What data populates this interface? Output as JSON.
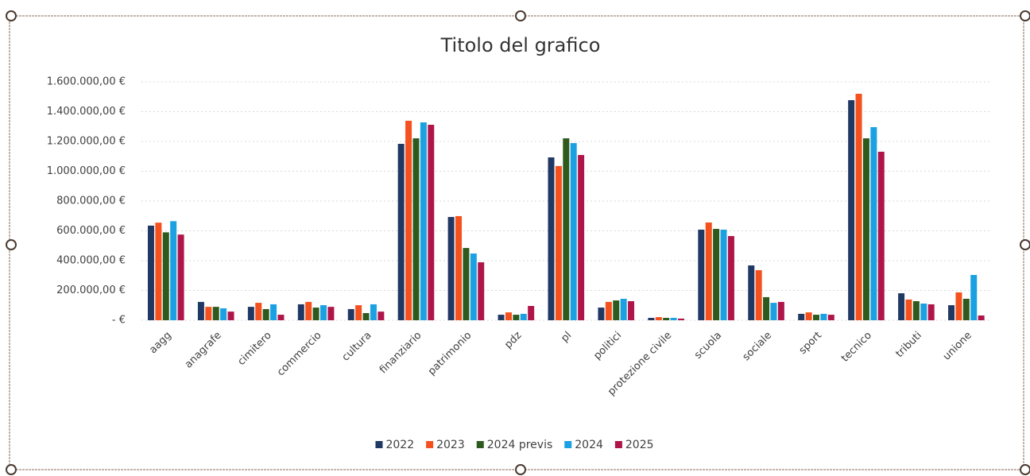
{
  "chart_data": {
    "type": "bar",
    "title": "Titolo del grafico",
    "categories": [
      "aagg",
      "anagrafe",
      "cimitero",
      "commercio",
      "cultura",
      "finanziario",
      "patrimonio",
      "pdz",
      "pl",
      "politici",
      "protezione civile",
      "scuola",
      "sociale",
      "sport",
      "tecnico",
      "tributi",
      "unione"
    ],
    "series": [
      {
        "name": "2022",
        "color": "#203864",
        "values": [
          635000,
          123000,
          90000,
          107000,
          75000,
          1184000,
          693000,
          37000,
          1093000,
          85000,
          16000,
          608000,
          368000,
          43000,
          1477000,
          181000,
          101000
        ]
      },
      {
        "name": "2023",
        "color": "#f4511e",
        "values": [
          655000,
          90000,
          117000,
          123000,
          101000,
          1339000,
          699000,
          53000,
          1035000,
          123000,
          21000,
          656000,
          336000,
          53000,
          1520000,
          139000,
          187000
        ]
      },
      {
        "name": "2024 previs",
        "color": "#2e5a1e",
        "values": [
          590000,
          90000,
          75000,
          85000,
          48000,
          1221000,
          485000,
          37000,
          1221000,
          133000,
          16000,
          613000,
          155000,
          37000,
          1221000,
          128000,
          144000
        ]
      },
      {
        "name": "2024",
        "color": "#1ba1e2",
        "values": [
          665000,
          80000,
          107000,
          101000,
          107000,
          1328000,
          448000,
          43000,
          1189000,
          144000,
          16000,
          608000,
          117000,
          43000,
          1296000,
          112000,
          304000
        ]
      },
      {
        "name": "2025",
        "color": "#b0154a",
        "values": [
          575000,
          58000,
          37000,
          90000,
          58000,
          1312000,
          389000,
          96000,
          1109000,
          128000,
          11000,
          565000,
          123000,
          37000,
          1131000,
          107000,
          32000
        ]
      }
    ],
    "ylim": [
      0,
      1600000
    ],
    "yticks": [
      {
        "value": 0,
        "label": "- €"
      },
      {
        "value": 200000,
        "label": "200.000,00 €"
      },
      {
        "value": 400000,
        "label": "400.000,00 €"
      },
      {
        "value": 600000,
        "label": "600.000,00 €"
      },
      {
        "value": 800000,
        "label": "800.000,00 €"
      },
      {
        "value": 1000000,
        "label": "1.000.000,00 €"
      },
      {
        "value": 1200000,
        "label": "1.200.000,00 €"
      },
      {
        "value": 1400000,
        "label": "1.400.000,00 €"
      },
      {
        "value": 1600000,
        "label": "1.600.000,00 €"
      }
    ],
    "grid": true,
    "legend": "bottom"
  }
}
